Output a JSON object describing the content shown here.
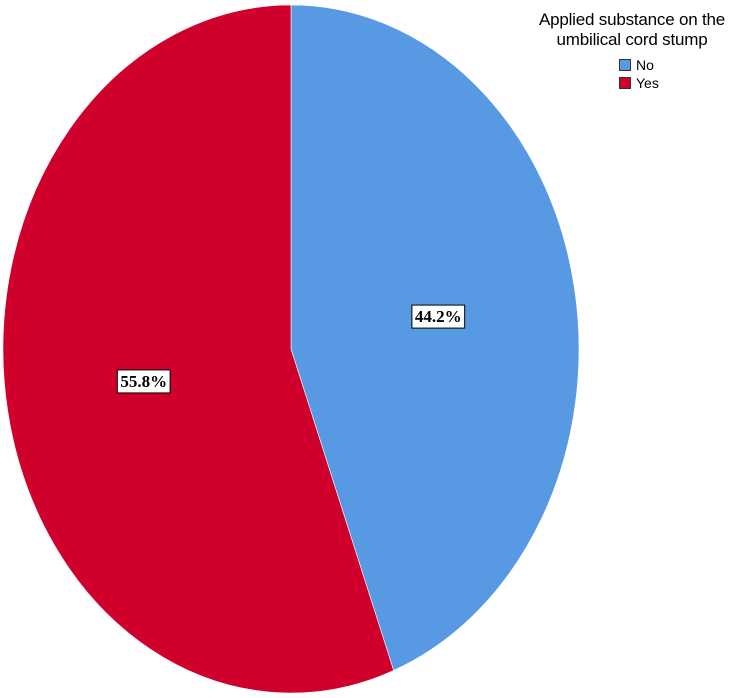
{
  "chart_data": {
    "type": "pie",
    "legend_title": "Applied substance on the umbilical cord stump",
    "legend_position": "top-right",
    "slices": [
      {
        "name": "No",
        "value": 44.2,
        "label": "44.2%",
        "color": "#5899e3"
      },
      {
        "name": "Yes",
        "value": 55.8,
        "label": "55.8%",
        "color": "#d0002c"
      }
    ],
    "start_angle_deg": 0,
    "direction": "clockwise"
  }
}
